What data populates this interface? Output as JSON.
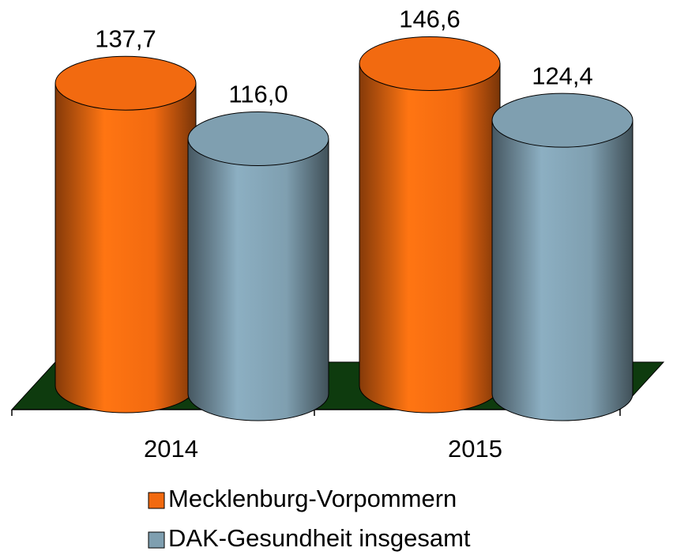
{
  "chart_data": {
    "type": "bar3d",
    "categories": [
      "2014",
      "2015"
    ],
    "series": [
      {
        "name": "Mecklenburg-Vorpommern",
        "color": "#f26a10",
        "values": [
          137.7,
          146.6
        ],
        "value_labels": [
          "137,7",
          "146,6"
        ]
      },
      {
        "name": "DAK-Gesundheit insgesamt",
        "color": "#7f9fb0",
        "values": [
          116.0,
          124.4
        ],
        "value_labels": [
          "116,0",
          "124,4"
        ]
      }
    ]
  }
}
